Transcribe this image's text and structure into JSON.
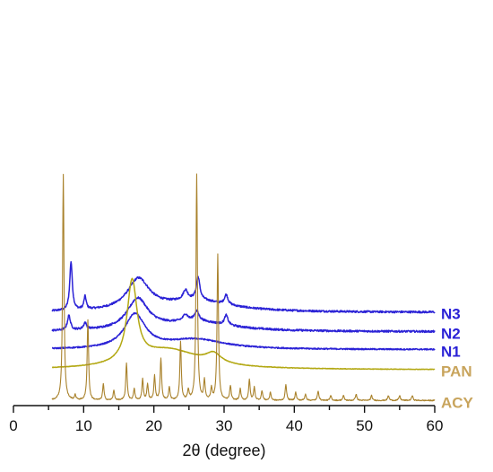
{
  "chart_data": {
    "type": "line",
    "xlabel": "2θ (degree)",
    "xlim": [
      0,
      60
    ],
    "xticks": [
      0,
      10,
      20,
      30,
      40,
      50,
      60
    ],
    "x_minor_step": 5,
    "yaxis_visible": false,
    "grid": false,
    "legend": "none",
    "series": [
      {
        "name": "N3",
        "color": "#2b22d6",
        "baseline": 5.6,
        "noise": 0.06,
        "peaks": [
          {
            "x": 8.2,
            "h": 3.0,
            "w": 0.22
          },
          {
            "x": 10.2,
            "h": 0.8,
            "w": 0.2
          },
          {
            "x": 17.8,
            "h": 1.9,
            "w": 1.9
          },
          {
            "x": 24.5,
            "h": 0.6,
            "w": 0.4
          },
          {
            "x": 26.3,
            "h": 1.4,
            "w": 0.3
          },
          {
            "x": 30.3,
            "h": 0.6,
            "w": 0.3
          },
          {
            "x": 26.0,
            "h": 0.7,
            "w": 6.0
          }
        ]
      },
      {
        "name": "N2",
        "color": "#2b22d6",
        "baseline": 4.4,
        "noise": 0.06,
        "peaks": [
          {
            "x": 7.9,
            "h": 0.9,
            "w": 0.25
          },
          {
            "x": 10.2,
            "h": 0.4,
            "w": 0.25
          },
          {
            "x": 17.7,
            "h": 1.9,
            "w": 1.8
          },
          {
            "x": 24.5,
            "h": 0.4,
            "w": 0.4
          },
          {
            "x": 26.1,
            "h": 0.6,
            "w": 0.4
          },
          {
            "x": 30.3,
            "h": 0.6,
            "w": 0.3
          },
          {
            "x": 26.0,
            "h": 0.6,
            "w": 6.0
          }
        ]
      },
      {
        "name": "N1",
        "color": "#2b22d6",
        "baseline": 3.3,
        "noise": 0.04,
        "peaks": [
          {
            "x": 17.3,
            "h": 2.1,
            "w": 1.8
          },
          {
            "x": 26.0,
            "h": 0.6,
            "w": 5.0
          }
        ]
      },
      {
        "name": "PAN",
        "color": "#b3a813",
        "baseline": 2.05,
        "noise": 0.015,
        "peaks": [
          {
            "x": 16.9,
            "h": 5.0,
            "w": 0.85
          },
          {
            "x": 22.0,
            "h": 1.2,
            "w": 5.5
          },
          {
            "x": 28.5,
            "h": 0.6,
            "w": 1.3
          }
        ]
      },
      {
        "name": "ACY",
        "color": "#a9822c",
        "baseline": 0.15,
        "noise": 0.035,
        "peaks": [
          {
            "x": 7.1,
            "h": 14.0,
            "w": 0.12
          },
          {
            "x": 8.8,
            "h": 0.3,
            "w": 0.12
          },
          {
            "x": 10.6,
            "h": 5.0,
            "w": 0.12
          },
          {
            "x": 12.8,
            "h": 1.0,
            "w": 0.12
          },
          {
            "x": 14.3,
            "h": 0.6,
            "w": 0.12
          },
          {
            "x": 16.1,
            "h": 2.3,
            "w": 0.12
          },
          {
            "x": 17.2,
            "h": 0.7,
            "w": 0.12
          },
          {
            "x": 18.4,
            "h": 1.3,
            "w": 0.12
          },
          {
            "x": 19.1,
            "h": 1.0,
            "w": 0.12
          },
          {
            "x": 20.1,
            "h": 1.5,
            "w": 0.12
          },
          {
            "x": 21.0,
            "h": 2.6,
            "w": 0.12
          },
          {
            "x": 22.2,
            "h": 0.8,
            "w": 0.12
          },
          {
            "x": 23.8,
            "h": 3.6,
            "w": 0.12
          },
          {
            "x": 24.9,
            "h": 0.6,
            "w": 0.12
          },
          {
            "x": 26.1,
            "h": 14.0,
            "w": 0.12
          },
          {
            "x": 27.2,
            "h": 1.2,
            "w": 0.12
          },
          {
            "x": 28.2,
            "h": 0.7,
            "w": 0.12
          },
          {
            "x": 29.1,
            "h": 9.0,
            "w": 0.12
          },
          {
            "x": 30.9,
            "h": 0.9,
            "w": 0.12
          },
          {
            "x": 32.3,
            "h": 0.7,
            "w": 0.12
          },
          {
            "x": 33.6,
            "h": 1.3,
            "w": 0.12
          },
          {
            "x": 34.3,
            "h": 0.8,
            "w": 0.12
          },
          {
            "x": 35.4,
            "h": 0.6,
            "w": 0.12
          },
          {
            "x": 36.6,
            "h": 0.5,
            "w": 0.12
          },
          {
            "x": 38.8,
            "h": 1.0,
            "w": 0.12
          },
          {
            "x": 40.2,
            "h": 0.5,
            "w": 0.12
          },
          {
            "x": 41.6,
            "h": 0.4,
            "w": 0.12
          },
          {
            "x": 43.4,
            "h": 0.6,
            "w": 0.12
          },
          {
            "x": 45.2,
            "h": 0.3,
            "w": 0.12
          },
          {
            "x": 47.0,
            "h": 0.3,
            "w": 0.12
          },
          {
            "x": 48.8,
            "h": 0.4,
            "w": 0.12
          },
          {
            "x": 51.0,
            "h": 0.3,
            "w": 0.12
          },
          {
            "x": 53.4,
            "h": 0.3,
            "w": 0.12
          },
          {
            "x": 55.0,
            "h": 0.3,
            "w": 0.12
          },
          {
            "x": 56.8,
            "h": 0.3,
            "w": 0.12
          }
        ]
      }
    ]
  }
}
